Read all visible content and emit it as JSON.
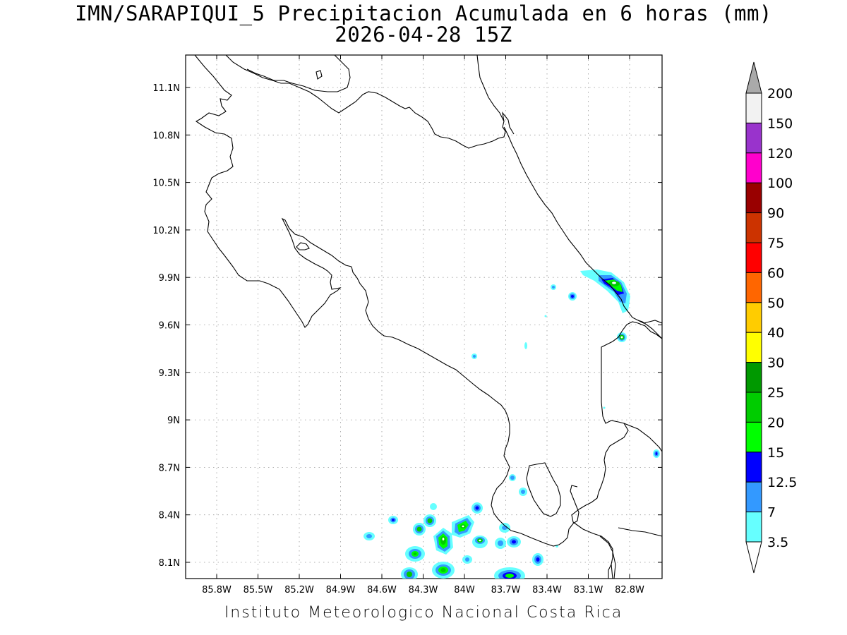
{
  "header": {
    "title": "IMN/SARAPIQUI_5 Precipitacion Acumulada en 6 horas (mm)",
    "subtitle": "2026-04-28 15Z"
  },
  "footer": {
    "credit": "Instituto Meteorologico Nacional Costa Rica"
  },
  "chart_data": {
    "type": "heatmap",
    "variable": "Precipitacion Acumulada en 6 horas (mm)",
    "x_ticks": [
      "85.8W",
      "85.5W",
      "85.2W",
      "84.9W",
      "84.6W",
      "84.3W",
      "84W",
      "83.7W",
      "83.4W",
      "83.1W",
      "82.8W"
    ],
    "y_ticks": [
      "11.1N",
      "10.8N",
      "10.5N",
      "10.2N",
      "9.9N",
      "9.6N",
      "9.3N",
      "9N",
      "8.7N",
      "8.4N",
      "8.1N"
    ],
    "grid": true,
    "legend_position": "right",
    "colorbar": {
      "levels": [
        "3.5",
        "7",
        "12.5",
        "15",
        "20",
        "25",
        "30",
        "40",
        "50",
        "60",
        "75",
        "90",
        "100",
        "120",
        "150",
        "200"
      ],
      "colors": [
        "#66ffff",
        "#3399ff",
        "#0000ff",
        "#00ff00",
        "#00cc00",
        "#009900",
        "#ffff00",
        "#ffcc00",
        "#ff6600",
        "#ff0000",
        "#cc3300",
        "#990000",
        "#ff00cc",
        "#9933cc",
        "#f2f2f2",
        "#aaaaaa"
      ]
    },
    "features": [
      {
        "area": "Caribbean coast near 82.8W 9.85N",
        "max_class": "25"
      },
      {
        "area": "83.2W 9.77N",
        "max_class": "12.5"
      },
      {
        "area": "83.3W 9.84N",
        "max_class": "7"
      },
      {
        "area": "82.8W 9.53N",
        "max_class": "20"
      },
      {
        "area": "82.5W 8.78N",
        "max_class": "12.5"
      },
      {
        "area": "84.3W-83.4W 8.1N-8.5N (Pacific offshore)",
        "max_class": "25"
      }
    ]
  }
}
